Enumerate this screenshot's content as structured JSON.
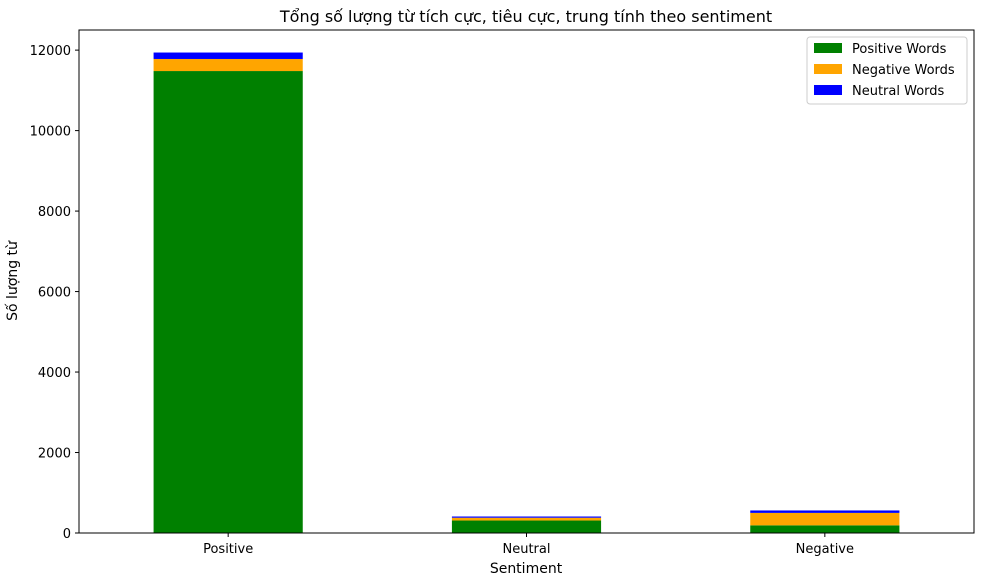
{
  "chart_data": {
    "type": "bar",
    "stacked": true,
    "title": "Tổng số lượng từ tích cực, tiêu cực, trung tính theo sentiment",
    "xlabel": "Sentiment",
    "ylabel": "Số lượng từ",
    "categories": [
      "Positive",
      "Neutral",
      "Negative"
    ],
    "series": [
      {
        "name": "Positive Words",
        "color": "#008000",
        "values": [
          11480,
          310,
          190
        ]
      },
      {
        "name": "Negative Words",
        "color": "#FFA500",
        "values": [
          300,
          70,
          310
        ]
      },
      {
        "name": "Neutral Words",
        "color": "#0000FF",
        "values": [
          160,
          30,
          60
        ]
      }
    ],
    "ylim": [
      0,
      12500
    ],
    "yticks": [
      0,
      2000,
      4000,
      6000,
      8000,
      10000,
      12000
    ],
    "ytick_labels": [
      "0",
      "2000",
      "4000",
      "6000",
      "8000",
      "10000",
      "12000"
    ],
    "grid": false,
    "legend": "top-right"
  }
}
